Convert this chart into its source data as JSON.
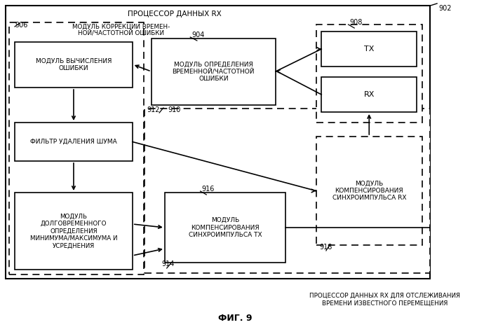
{
  "title": "ФИГ. 9",
  "bg_color": "#ffffff",
  "label_902": "902",
  "label_904": "904",
  "label_906": "906",
  "label_908": "908",
  "label_910": "910",
  "label_912": "912",
  "label_914": "914",
  "label_916": "916",
  "label_918": "918",
  "box_proc_rx_title": "ПРОЦЕССОР ДАННЫХ RX",
  "box_error_calc": "МОДУЛЬ ВЫЧИСЛЕНИЯ\nОШИБКИ",
  "box_time_freq": "МОДУЛЬ ОПРЕДЕЛЕНИЯ\nВРЕМЕННОЙ/ЧАСТОТНОЙ\nОШИБКИ",
  "box_noise_filter": "ФИЛЬТР УДАЛЕНИЯ ШУМА",
  "box_long_term": "МОДУЛЬ\nДОЛГОВРЕМЕННОГО\nОПРЕДЕЛЕНИЯ\nМИНИМУМА/МАКСИМУМА И\nУСРЕДНЕНИЯ",
  "box_tx_comp": "МОДУЛЬ\nКОМПЕНСИРОВАНИЯ\nСИНХРОИМПУЛЬСА TX",
  "box_correction_title": "МОДУЛЬ КОРРЕКЦИИ ВРЕМЕН-\nНОЙ/ЧАСТОТНОЙ ОШИБКИ",
  "box_tx": "TX",
  "box_rx": "RX",
  "box_rx_comp": "МОДУЛЬ\nКОМПЕНСИРОВАНИЯ\nСИНХРОИМПУЛЬСА RX",
  "bottom_label": "ПРОЦЕССОР ДАННЫХ RX ДЛЯ ОТСЛЕЖИВАНИЯ\nВРЕМЕНИ ИЗВЕСТНОГО ПЕРЕМЕЩЕНИЯ"
}
